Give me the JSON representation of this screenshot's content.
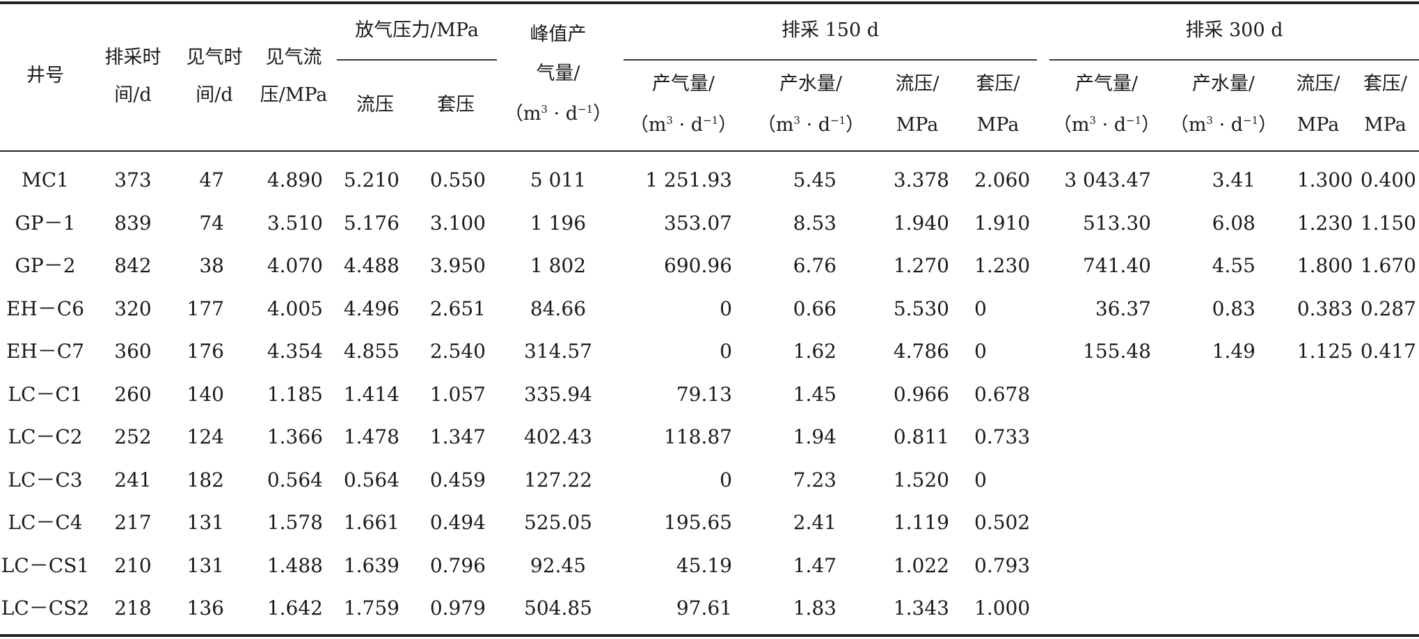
{
  "headers": {
    "well": "井号",
    "drain_time": [
      "排采时",
      "间/d"
    ],
    "gas_time": [
      "见气时",
      "间/d"
    ],
    "gas_flow_pressure": [
      "见气流",
      "压/MPa"
    ],
    "release_pressure": "放气压力/MPa",
    "flow_pressure": "流压",
    "casing_pressure": "套压",
    "peak_gas": [
      "峰值产",
      "气量/"
    ],
    "day150": "排采 150 d",
    "day300": "排采 300 d",
    "gas_output": "产气量/",
    "water_output": "产水量/",
    "flow_pressure_unit": "流压/",
    "casing_pressure_unit": "套压/",
    "mpa": "MPa",
    "unit_m3": "m",
    "unit_exp3": "3",
    "unit_d": "d",
    "unit_exp_neg1": "−1",
    "open_paren": "（",
    "close_paren": "）",
    "dot": "·"
  },
  "rows": [
    [
      "MC1",
      "373",
      "47",
      "4.890",
      "5.210",
      "0.550",
      "5 011",
      "1 251.93",
      "5.45",
      "3.378",
      "2.060",
      "3 043.47",
      "3.41",
      "1.300",
      "0.400"
    ],
    [
      "GP－1",
      "839",
      "74",
      "3.510",
      "5.176",
      "3.100",
      "1 196",
      "353.07",
      "8.53",
      "1.940",
      "1.910",
      "513.30",
      "6.08",
      "1.230",
      "1.150"
    ],
    [
      "GP－2",
      "842",
      "38",
      "4.070",
      "4.488",
      "3.950",
      "1 802",
      "690.96",
      "6.76",
      "1.270",
      "1.230",
      "741.40",
      "4.55",
      "1.800",
      "1.670"
    ],
    [
      "EH－C6",
      "320",
      "177",
      "4.005",
      "4.496",
      "2.651",
      "84.66",
      "0",
      "0.66",
      "5.530",
      "0",
      "36.37",
      "0.83",
      "0.383",
      "0.287"
    ],
    [
      "EH－C7",
      "360",
      "176",
      "4.354",
      "4.855",
      "2.540",
      "314.57",
      "0",
      "1.62",
      "4.786",
      "0",
      "155.48",
      "1.49",
      "1.125",
      "0.417"
    ],
    [
      "LC－C1",
      "260",
      "140",
      "1.185",
      "1.414",
      "1.057",
      "335.94",
      "79.13",
      "1.45",
      "0.966",
      "0.678",
      "",
      "",
      "",
      ""
    ],
    [
      "LC－C2",
      "252",
      "124",
      "1.366",
      "1.478",
      "1.347",
      "402.43",
      "118.87",
      "1.94",
      "0.811",
      "0.733",
      "",
      "",
      "",
      ""
    ],
    [
      "LC－C3",
      "241",
      "182",
      "0.564",
      "0.564",
      "0.459",
      "127.22",
      "0",
      "7.23",
      "1.520",
      "0",
      "",
      "",
      "",
      ""
    ],
    [
      "LC－C4",
      "217",
      "131",
      "1.578",
      "1.661",
      "0.494",
      "525.05",
      "195.65",
      "2.41",
      "1.119",
      "0.502",
      "",
      "",
      "",
      ""
    ],
    [
      "LC－CS1",
      "210",
      "131",
      "1.488",
      "1.639",
      "0.796",
      "92.45",
      "45.19",
      "1.47",
      "1.022",
      "0.793",
      "",
      "",
      "",
      ""
    ],
    [
      "LC－CS2",
      "218",
      "136",
      "1.642",
      "1.759",
      "0.979",
      "504.85",
      "97.61",
      "1.83",
      "1.343",
      "1.000",
      "",
      "",
      "",
      ""
    ]
  ]
}
